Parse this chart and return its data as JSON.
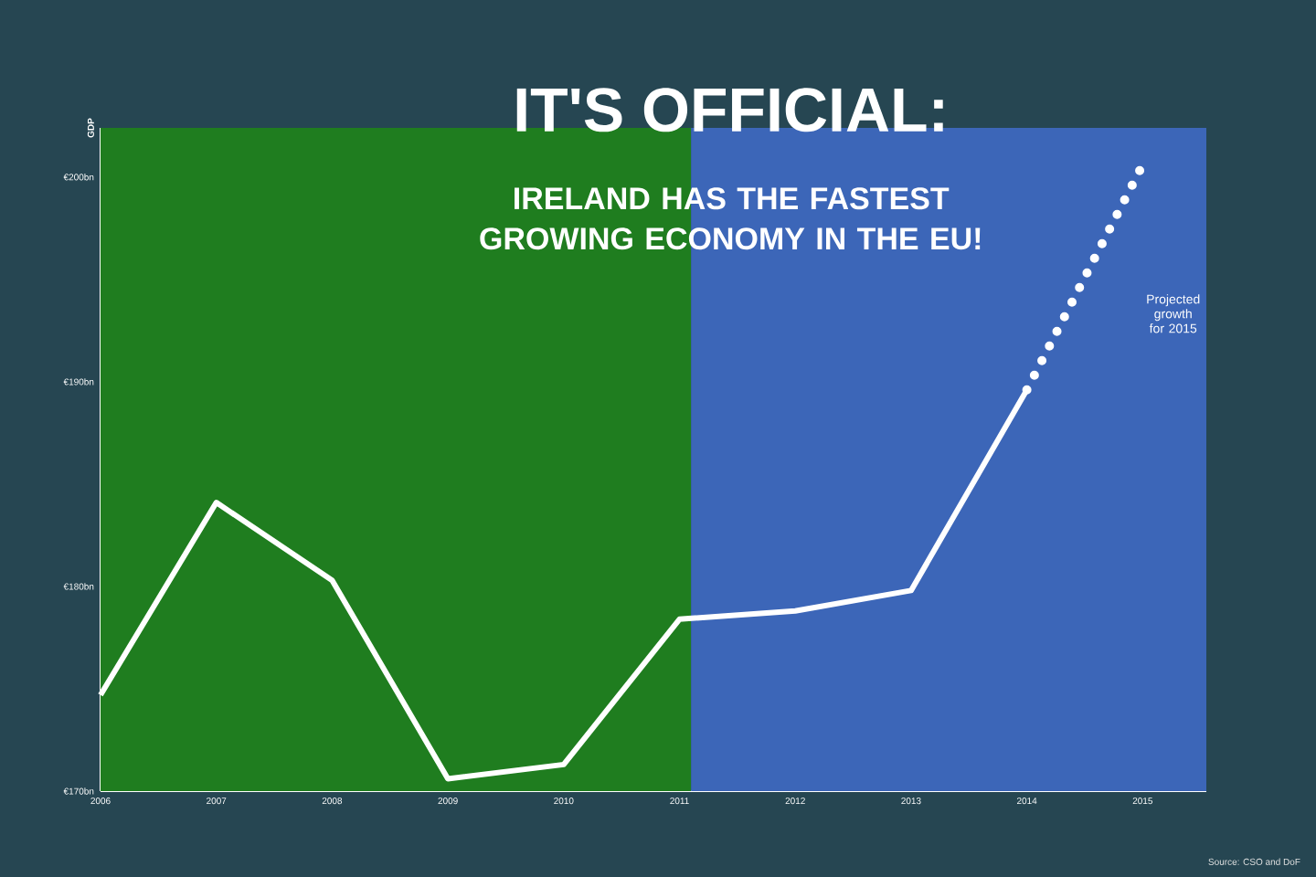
{
  "chart_data": {
    "type": "line",
    "title": "IT'S OFFICIAL:",
    "subtitle": "IRELAND HAS THE FASTEST GROWING ECONOMY IN THE EU!",
    "ylabel": "GDP",
    "x": [
      2006,
      2007,
      2008,
      2009,
      2010,
      2011,
      2012,
      2013,
      2014
    ],
    "series": [
      {
        "color": "#ffffff",
        "values": [
          174.7,
          184.1,
          180.3,
          170.6,
          171.3,
          178.4,
          178.8,
          179.8,
          189.6
        ],
        "line_style": "solid"
      },
      {
        "color": "#ffffff",
        "x": [
          2014,
          2015
        ],
        "values": [
          189.6,
          200.6
        ],
        "line_style": "dotted"
      }
    ],
    "xlim": [
      2006,
      2015.55
    ],
    "ylim": [
      170,
      202.4
    ],
    "xticks": [
      2006,
      2007,
      2008,
      2009,
      2010,
      2011,
      2012,
      2013,
      2014,
      2015
    ],
    "yticks": [
      {
        "value": 170,
        "label": "€170bn"
      },
      {
        "value": 180,
        "label": "€180bn"
      },
      {
        "value": 190,
        "label": "€190bn"
      },
      {
        "value": 200,
        "label": "€200bn"
      }
    ],
    "bands": [
      {
        "axis": "x",
        "from": 2006,
        "to": 2011.1,
        "color": "#1f7d1f"
      },
      {
        "axis": "x",
        "from": 2011.1,
        "to": 2015.55,
        "color": "#3c66b8"
      }
    ],
    "annotations": [
      "Projected growth for 2015",
      "Source: CSO and DoF"
    ],
    "grid": false,
    "marker": "none"
  }
}
